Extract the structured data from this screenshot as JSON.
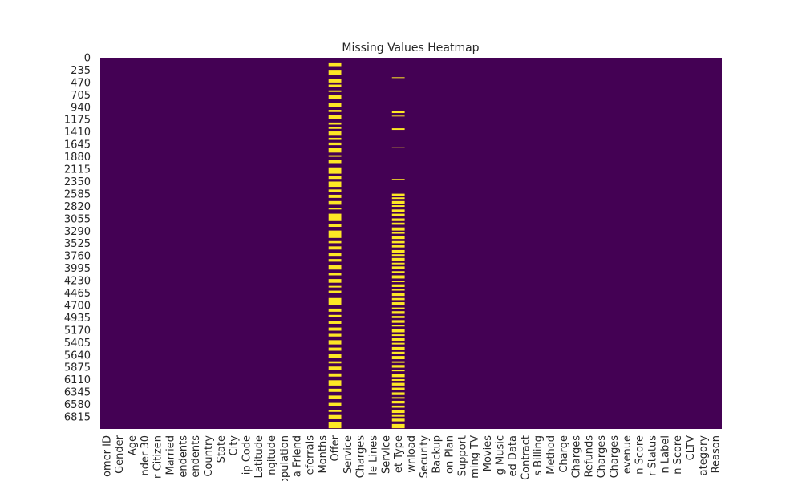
{
  "chart_data": {
    "type": "heatmap",
    "title": "Missing Values Heatmap",
    "grid": false,
    "legend": "none",
    "colorbar": false,
    "colors": {
      "present": "#440154",
      "missing": "#fde725"
    },
    "value_meaning": {
      "0": "present",
      "1": "missing"
    },
    "y_tick_labels": [
      "0",
      "235",
      "470",
      "705",
      "940",
      "1175",
      "1410",
      "1645",
      "1880",
      "2115",
      "2350",
      "2585",
      "2820",
      "3055",
      "3290",
      "3525",
      "3760",
      "3995",
      "4230",
      "4465",
      "4700",
      "4935",
      "5170",
      "5405",
      "5640",
      "5875",
      "6110",
      "6345",
      "6580",
      "6815"
    ],
    "y_tick_values": [
      0,
      235,
      470,
      705,
      940,
      1175,
      1410,
      1645,
      1880,
      2115,
      2350,
      2585,
      2820,
      3055,
      3290,
      3525,
      3760,
      3995,
      4230,
      4465,
      4700,
      4935,
      5170,
      5405,
      5640,
      5875,
      6110,
      6345,
      6580,
      6815
    ],
    "ylim": [
      0,
      7043
    ],
    "x_tick_labels": [
      "omer ID",
      "Gender",
      "Age",
      "nder 30",
      "r Citizen",
      "Married",
      "endents",
      "endents",
      "Country",
      "State",
      "City",
      "ip Code",
      "Latitude",
      "ngitude",
      "opulation",
      "a Friend",
      "eferrals",
      "Months",
      "Offer",
      "Service",
      "Charges",
      "le Lines",
      "Service",
      "et Type",
      "wnload",
      "Security",
      "Backup",
      "on Plan",
      "Support",
      "ming TV",
      "Movies",
      "g Music",
      "ed Data",
      "Contract",
      "s Billing",
      "Method",
      "Charge",
      "Charges",
      "Refunds",
      "Charges",
      "Charges",
      "evenue",
      "n Score",
      "r Status",
      "n Label",
      "n Score",
      "CLTV",
      "ategory",
      "Reason"
    ],
    "missing_segments": [
      {
        "column_index": 18,
        "column_label": "Offer",
        "ranges": [
          [
            90,
            160
          ],
          [
            230,
            330
          ],
          [
            400,
            470
          ],
          [
            510,
            560
          ],
          [
            620,
            650
          ],
          [
            700,
            790
          ],
          [
            860,
            940
          ],
          [
            990,
            1030
          ],
          [
            1080,
            1170
          ],
          [
            1230,
            1270
          ],
          [
            1320,
            1350
          ],
          [
            1400,
            1480
          ],
          [
            1520,
            1560
          ],
          [
            1610,
            1660
          ],
          [
            1710,
            1800
          ],
          [
            1850,
            1880
          ],
          [
            1940,
            2000
          ],
          [
            2080,
            2200
          ],
          [
            2250,
            2300
          ],
          [
            2350,
            2450
          ],
          [
            2500,
            2550
          ],
          [
            2600,
            2660
          ],
          [
            2720,
            2790
          ],
          [
            2850,
            2880
          ],
          [
            2960,
            3100
          ],
          [
            3160,
            3210
          ],
          [
            3280,
            3420
          ],
          [
            3480,
            3520
          ],
          [
            3580,
            3640
          ],
          [
            3700,
            3760
          ],
          [
            3820,
            3870
          ],
          [
            3940,
            4020
          ],
          [
            4090,
            4130
          ],
          [
            4200,
            4270
          ],
          [
            4330,
            4360
          ],
          [
            4420,
            4470
          ],
          [
            4560,
            4700
          ],
          [
            4760,
            4820
          ],
          [
            4880,
            4920
          ],
          [
            4990,
            5050
          ],
          [
            5120,
            5180
          ],
          [
            5240,
            5290
          ],
          [
            5360,
            5440
          ],
          [
            5500,
            5560
          ],
          [
            5620,
            5700
          ],
          [
            5760,
            5800
          ],
          [
            5860,
            5920
          ],
          [
            5990,
            6050
          ],
          [
            6120,
            6220
          ],
          [
            6280,
            6340
          ],
          [
            6410,
            6480
          ],
          [
            6550,
            6610
          ],
          [
            6680,
            6720
          ],
          [
            6780,
            6860
          ],
          [
            6920,
            7030
          ]
        ]
      },
      {
        "column_index": 23,
        "column_label": "et Type",
        "ranges": [
          [
            370,
            380
          ],
          [
            1010,
            1050
          ],
          [
            1100,
            1110
          ],
          [
            1340,
            1370
          ],
          [
            1700,
            1710
          ],
          [
            2300,
            2310
          ],
          [
            2580,
            2620
          ],
          [
            2650,
            2680
          ],
          [
            2720,
            2770
          ],
          [
            2800,
            2830
          ],
          [
            2880,
            2930
          ],
          [
            2960,
            3000
          ],
          [
            3050,
            3100
          ],
          [
            3130,
            3170
          ],
          [
            3220,
            3280
          ],
          [
            3310,
            3340
          ],
          [
            3390,
            3440
          ],
          [
            3480,
            3520
          ],
          [
            3560,
            3600
          ],
          [
            3650,
            3700
          ],
          [
            3730,
            3760
          ],
          [
            3800,
            3850
          ],
          [
            3890,
            3920
          ],
          [
            3960,
            4010
          ],
          [
            4050,
            4080
          ],
          [
            4130,
            4190
          ],
          [
            4230,
            4260
          ],
          [
            4300,
            4350
          ],
          [
            4390,
            4420
          ],
          [
            4470,
            4520
          ],
          [
            4560,
            4600
          ],
          [
            4640,
            4700
          ],
          [
            4740,
            4770
          ],
          [
            4810,
            4860
          ],
          [
            4900,
            4940
          ],
          [
            4980,
            5030
          ],
          [
            5070,
            5100
          ],
          [
            5150,
            5210
          ],
          [
            5250,
            5280
          ],
          [
            5320,
            5370
          ],
          [
            5410,
            5440
          ],
          [
            5490,
            5540
          ],
          [
            5580,
            5620
          ],
          [
            5660,
            5720
          ],
          [
            5760,
            5790
          ],
          [
            5830,
            5880
          ],
          [
            5920,
            5950
          ],
          [
            6000,
            6060
          ],
          [
            6100,
            6130
          ],
          [
            6170,
            6220
          ],
          [
            6260,
            6300
          ],
          [
            6350,
            6400
          ],
          [
            6440,
            6470
          ],
          [
            6510,
            6560
          ],
          [
            6600,
            6640
          ],
          [
            6680,
            6740
          ],
          [
            6780,
            6810
          ],
          [
            6850,
            6900
          ],
          [
            6950,
            7030
          ]
        ]
      }
    ]
  }
}
